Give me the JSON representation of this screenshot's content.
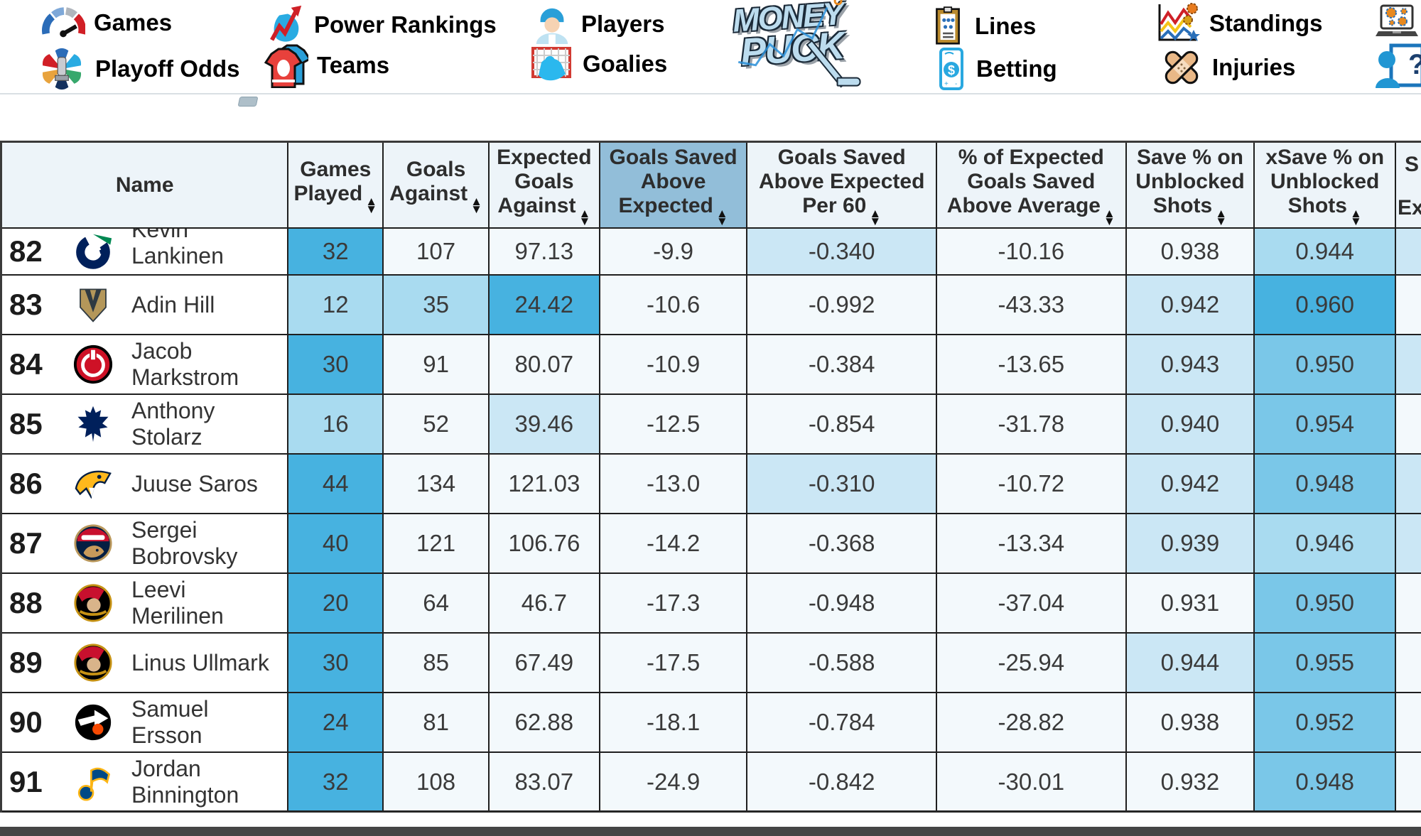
{
  "nav": {
    "items": [
      {
        "id": "games",
        "label": "Games"
      },
      {
        "id": "power-rankings",
        "label": "Power Rankings"
      },
      {
        "id": "players",
        "label": "Players"
      },
      {
        "id": "playoff-odds",
        "label": "Playoff Odds"
      },
      {
        "id": "teams",
        "label": "Teams"
      },
      {
        "id": "goalies",
        "label": "Goalies"
      },
      {
        "id": "lines",
        "label": "Lines"
      },
      {
        "id": "betting",
        "label": "Betting"
      },
      {
        "id": "standings",
        "label": "Standings"
      },
      {
        "id": "injuries",
        "label": "Injuries"
      }
    ],
    "logo": {
      "line1": "MONEY",
      "line2": "PUCK"
    }
  },
  "colors": {
    "header_bg": "#edf4f9",
    "header_highlight": "#92bed9",
    "grid": "#1f1f1f",
    "palette": {
      "c0": "#f3f9fc",
      "c1": "#cbe7f5",
      "c2": "#a9dbf0",
      "c3": "#7ac7e8",
      "c4": "#47b2e0"
    }
  },
  "table": {
    "columns": [
      {
        "id": "name",
        "lines": [
          "Name"
        ],
        "sortable": false
      },
      {
        "id": "games-played",
        "lines": [
          "Games",
          "Played"
        ],
        "sortable": true
      },
      {
        "id": "goals-against",
        "lines": [
          "Goals",
          "Against"
        ],
        "sortable": true
      },
      {
        "id": "expected-goals-against",
        "lines": [
          "Expected",
          "Goals",
          "Against"
        ],
        "sortable": true
      },
      {
        "id": "goals-saved-above-expected",
        "lines": [
          "Goals Saved",
          "Above",
          "Expected"
        ],
        "sortable": true,
        "highlighted": true
      },
      {
        "id": "goals-saved-above-expected-per-60",
        "lines": [
          "Goals Saved",
          "Above Expected",
          "Per 60"
        ],
        "sortable": true
      },
      {
        "id": "pct-expected-goals-saved-above-average",
        "lines": [
          "% of Expected",
          "Goals Saved",
          "Above Average"
        ],
        "sortable": true
      },
      {
        "id": "save-pct-unblocked",
        "lines": [
          "Save % on",
          "Unblocked",
          "Shots"
        ],
        "sortable": true
      },
      {
        "id": "xsave-pct-unblocked",
        "lines": [
          "xSave % on",
          "Unblocked",
          "Shots"
        ],
        "sortable": true
      }
    ],
    "partial_column": {
      "top_fragment": "S",
      "bottom_fragment": "Ex"
    },
    "rows": [
      {
        "rank": "82",
        "team": "canucks",
        "name_lines": [
          "Kevin",
          "Lankinen"
        ],
        "clipped": true,
        "cells": [
          {
            "v": "32",
            "c": "c4"
          },
          {
            "v": "107",
            "c": "c0"
          },
          {
            "v": "97.13",
            "c": "c0"
          },
          {
            "v": "-9.9",
            "c": "c0"
          },
          {
            "v": "-0.340",
            "c": "c1"
          },
          {
            "v": "-10.16",
            "c": "c0"
          },
          {
            "v": "0.938",
            "c": "c0"
          },
          {
            "v": "0.944",
            "c": "c2"
          }
        ],
        "partial_c": "c1"
      },
      {
        "rank": "83",
        "team": "golden-knights",
        "name_lines": [
          "Adin Hill"
        ],
        "cells": [
          {
            "v": "12",
            "c": "c2"
          },
          {
            "v": "35",
            "c": "c2"
          },
          {
            "v": "24.42",
            "c": "c4"
          },
          {
            "v": "-10.6",
            "c": "c0"
          },
          {
            "v": "-0.992",
            "c": "c0"
          },
          {
            "v": "-43.33",
            "c": "c0"
          },
          {
            "v": "0.942",
            "c": "c1"
          },
          {
            "v": "0.960",
            "c": "c4"
          }
        ],
        "partial_c": "c0"
      },
      {
        "rank": "84",
        "team": "devils",
        "name_lines": [
          "Jacob",
          "Markstrom"
        ],
        "cells": [
          {
            "v": "30",
            "c": "c4"
          },
          {
            "v": "91",
            "c": "c0"
          },
          {
            "v": "80.07",
            "c": "c0"
          },
          {
            "v": "-10.9",
            "c": "c0"
          },
          {
            "v": "-0.384",
            "c": "c0"
          },
          {
            "v": "-13.65",
            "c": "c0"
          },
          {
            "v": "0.943",
            "c": "c1"
          },
          {
            "v": "0.950",
            "c": "c3"
          }
        ],
        "partial_c": "c1"
      },
      {
        "rank": "85",
        "team": "maple-leafs",
        "name_lines": [
          "Anthony",
          "Stolarz"
        ],
        "cells": [
          {
            "v": "16",
            "c": "c2"
          },
          {
            "v": "52",
            "c": "c0"
          },
          {
            "v": "39.46",
            "c": "c1"
          },
          {
            "v": "-12.5",
            "c": "c0"
          },
          {
            "v": "-0.854",
            "c": "c0"
          },
          {
            "v": "-31.78",
            "c": "c0"
          },
          {
            "v": "0.940",
            "c": "c1"
          },
          {
            "v": "0.954",
            "c": "c3"
          }
        ],
        "partial_c": "c0"
      },
      {
        "rank": "86",
        "team": "predators",
        "name_lines": [
          "Juuse Saros"
        ],
        "cells": [
          {
            "v": "44",
            "c": "c4"
          },
          {
            "v": "134",
            "c": "c0"
          },
          {
            "v": "121.03",
            "c": "c0"
          },
          {
            "v": "-13.0",
            "c": "c0"
          },
          {
            "v": "-0.310",
            "c": "c1"
          },
          {
            "v": "-10.72",
            "c": "c0"
          },
          {
            "v": "0.942",
            "c": "c1"
          },
          {
            "v": "0.948",
            "c": "c3"
          }
        ],
        "partial_c": "c1"
      },
      {
        "rank": "87",
        "team": "panthers",
        "name_lines": [
          "Sergei",
          "Bobrovsky"
        ],
        "cells": [
          {
            "v": "40",
            "c": "c4"
          },
          {
            "v": "121",
            "c": "c0"
          },
          {
            "v": "106.76",
            "c": "c0"
          },
          {
            "v": "-14.2",
            "c": "c0"
          },
          {
            "v": "-0.368",
            "c": "c0"
          },
          {
            "v": "-13.34",
            "c": "c0"
          },
          {
            "v": "0.939",
            "c": "c1"
          },
          {
            "v": "0.946",
            "c": "c2"
          }
        ],
        "partial_c": "c1"
      },
      {
        "rank": "88",
        "team": "senators",
        "name_lines": [
          "Leevi",
          "Merilinen"
        ],
        "cells": [
          {
            "v": "20",
            "c": "c4"
          },
          {
            "v": "64",
            "c": "c0"
          },
          {
            "v": "46.7",
            "c": "c0"
          },
          {
            "v": "-17.3",
            "c": "c0"
          },
          {
            "v": "-0.948",
            "c": "c0"
          },
          {
            "v": "-37.04",
            "c": "c0"
          },
          {
            "v": "0.931",
            "c": "c0"
          },
          {
            "v": "0.950",
            "c": "c3"
          }
        ],
        "partial_c": "c0"
      },
      {
        "rank": "89",
        "team": "senators",
        "name_lines": [
          "Linus Ullmark"
        ],
        "cells": [
          {
            "v": "30",
            "c": "c4"
          },
          {
            "v": "85",
            "c": "c0"
          },
          {
            "v": "67.49",
            "c": "c0"
          },
          {
            "v": "-17.5",
            "c": "c0"
          },
          {
            "v": "-0.588",
            "c": "c0"
          },
          {
            "v": "-25.94",
            "c": "c0"
          },
          {
            "v": "0.944",
            "c": "c1"
          },
          {
            "v": "0.955",
            "c": "c3"
          }
        ],
        "partial_c": "c0"
      },
      {
        "rank": "90",
        "team": "flyers",
        "name_lines": [
          "Samuel",
          "Ersson"
        ],
        "cells": [
          {
            "v": "24",
            "c": "c4"
          },
          {
            "v": "81",
            "c": "c0"
          },
          {
            "v": "62.88",
            "c": "c0"
          },
          {
            "v": "-18.1",
            "c": "c0"
          },
          {
            "v": "-0.784",
            "c": "c0"
          },
          {
            "v": "-28.82",
            "c": "c0"
          },
          {
            "v": "0.938",
            "c": "c0"
          },
          {
            "v": "0.952",
            "c": "c3"
          }
        ],
        "partial_c": "c0"
      },
      {
        "rank": "91",
        "team": "blues",
        "name_lines": [
          "Jordan",
          "Binnington"
        ],
        "cells": [
          {
            "v": "32",
            "c": "c4"
          },
          {
            "v": "108",
            "c": "c0"
          },
          {
            "v": "83.07",
            "c": "c0"
          },
          {
            "v": "-24.9",
            "c": "c0"
          },
          {
            "v": "-0.842",
            "c": "c0"
          },
          {
            "v": "-30.01",
            "c": "c0"
          },
          {
            "v": "0.932",
            "c": "c0"
          },
          {
            "v": "0.948",
            "c": "c3"
          }
        ],
        "partial_c": "c0"
      }
    ]
  }
}
